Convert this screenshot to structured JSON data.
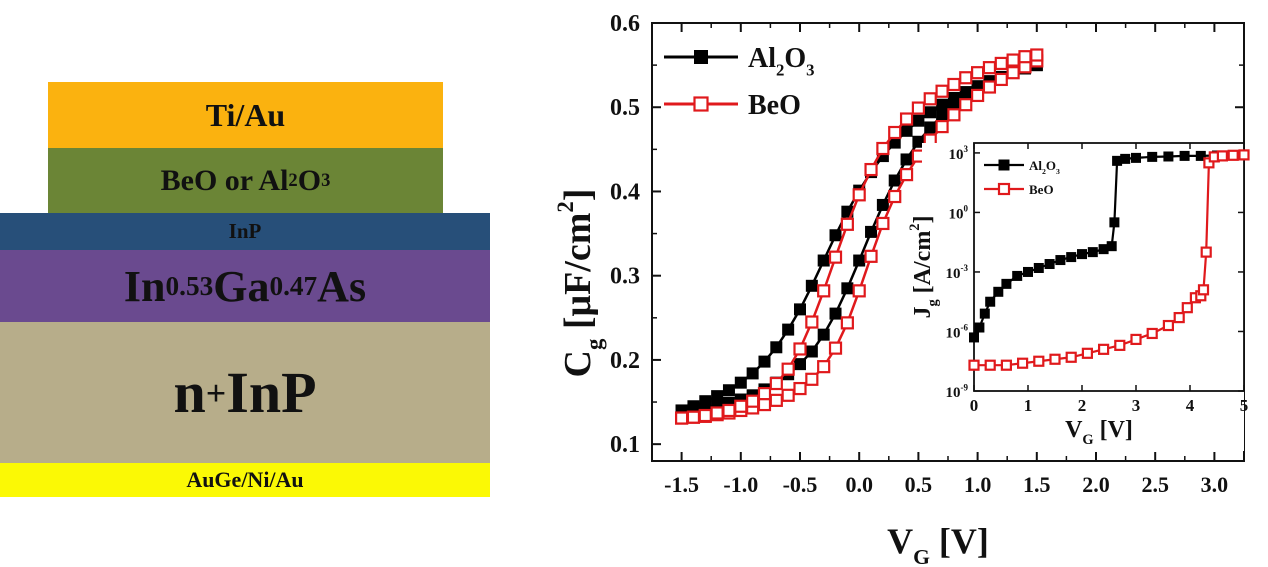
{
  "stack": {
    "layers": [
      {
        "label": "Ti/Au",
        "color": "#fbb20f"
      },
      {
        "label": "BeO or Al",
        "sub": "2",
        "label2": "O",
        "sub2": "3",
        "color": "#6b8536"
      },
      {
        "label": "InP",
        "color": "#274f79"
      },
      {
        "label": "In",
        "sub": "0.53",
        "label2": "Ga",
        "sub2": "0.47",
        "label3": "As",
        "color": "#6a4a8f"
      },
      {
        "label": "n",
        "sup": "+",
        "label2": " InP",
        "color": "#b7ad8a"
      },
      {
        "label": "AuGe/Ni/Au",
        "color": "#fbf905"
      }
    ]
  },
  "chart_data": [
    {
      "type": "line",
      "xlabel": "V",
      "xlabel_sub": "G",
      "xlabel_unit": "[V]",
      "ylabel": "C",
      "ylabel_sub": "g",
      "ylabel_unit_open": "[μF/cm",
      "ylabel_unit_sup": "2",
      "ylabel_unit_close": "]",
      "xlim": [
        -1.75,
        3.25
      ],
      "ylim": [
        0.08,
        0.6
      ],
      "xticks": [
        "-1.5",
        "-1.0",
        "-0.5",
        "0.0",
        "0.5",
        "1.0",
        "1.5",
        "2.0",
        "2.5",
        "3.0"
      ],
      "xtick_values": [
        -1.5,
        -1.0,
        -0.5,
        0.0,
        0.5,
        1.0,
        1.5,
        2.0,
        2.5,
        3.0
      ],
      "yticks": [
        "0.1",
        "0.2",
        "0.3",
        "0.4",
        "0.5",
        "0.6"
      ],
      "ytick_values": [
        0.1,
        0.2,
        0.3,
        0.4,
        0.5,
        0.6
      ],
      "legend_position": "top-left",
      "series": [
        {
          "name": "Al",
          "name_sub": "2",
          "name2": "O",
          "name_sub2": "3",
          "color": "#000000",
          "marker": "filled-square",
          "forward": {
            "x": [
              -1.5,
              -1.4,
              -1.3,
              -1.2,
              -1.1,
              -1.0,
              -0.9,
              -0.8,
              -0.7,
              -0.6,
              -0.5,
              -0.4,
              -0.3,
              -0.2,
              -0.1,
              0.0,
              0.1,
              0.2,
              0.3,
              0.4,
              0.5,
              0.6,
              0.7,
              0.8,
              0.9,
              1.0,
              1.1,
              1.2,
              1.3,
              1.4,
              1.5
            ],
            "y": [
              0.14,
              0.145,
              0.151,
              0.157,
              0.164,
              0.173,
              0.184,
              0.198,
              0.215,
              0.236,
              0.26,
              0.288,
              0.318,
              0.348,
              0.376,
              0.401,
              0.423,
              0.442,
              0.458,
              0.472,
              0.484,
              0.494,
              0.503,
              0.511,
              0.518,
              0.525,
              0.531,
              0.536,
              0.541,
              0.546,
              0.55
            ]
          },
          "reverse": {
            "x": [
              1.5,
              1.4,
              1.3,
              1.2,
              1.1,
              1.0,
              0.9,
              0.8,
              0.7,
              0.6,
              0.5,
              0.4,
              0.3,
              0.2,
              0.1,
              0.0,
              -0.1,
              -0.2,
              -0.3,
              -0.4,
              -0.5,
              -0.6,
              -0.7,
              -0.8,
              -0.9,
              -1.0,
              -1.1,
              -1.2,
              -1.3,
              -1.4,
              -1.5
            ],
            "y": [
              0.55,
              0.546,
              0.541,
              0.535,
              0.529,
              0.521,
              0.512,
              0.502,
              0.49,
              0.476,
              0.459,
              0.438,
              0.413,
              0.384,
              0.352,
              0.318,
              0.285,
              0.255,
              0.23,
              0.21,
              0.195,
              0.183,
              0.173,
              0.165,
              0.158,
              0.153,
              0.149,
              0.146,
              0.143,
              0.141,
              0.14
            ]
          }
        },
        {
          "name": "BeO",
          "color": "#e0191c",
          "marker": "open-square",
          "forward": {
            "x": [
              -1.5,
              -1.4,
              -1.3,
              -1.2,
              -1.1,
              -1.0,
              -0.9,
              -0.8,
              -0.7,
              -0.6,
              -0.5,
              -0.4,
              -0.3,
              -0.2,
              -0.1,
              0.0,
              0.1,
              0.2,
              0.3,
              0.4,
              0.5,
              0.6,
              0.7,
              0.8,
              0.9,
              1.0,
              1.1,
              1.2,
              1.3,
              1.4,
              1.5
            ],
            "y": [
              0.131,
              0.132,
              0.133,
              0.135,
              0.137,
              0.14,
              0.143,
              0.147,
              0.152,
              0.158,
              0.166,
              0.177,
              0.192,
              0.214,
              0.244,
              0.282,
              0.323,
              0.362,
              0.394,
              0.42,
              0.442,
              0.461,
              0.477,
              0.491,
              0.503,
              0.514,
              0.524,
              0.533,
              0.541,
              0.548,
              0.555
            ]
          },
          "reverse": {
            "x": [
              1.5,
              1.4,
              1.3,
              1.2,
              1.1,
              1.0,
              0.9,
              0.8,
              0.7,
              0.6,
              0.5,
              0.4,
              0.3,
              0.2,
              0.1,
              0.0,
              -0.1,
              -0.2,
              -0.3,
              -0.4,
              -0.5,
              -0.6,
              -0.7,
              -0.8,
              -0.9,
              -1.0,
              -1.1,
              -1.2,
              -1.3,
              -1.4,
              -1.5
            ],
            "y": [
              0.562,
              0.56,
              0.556,
              0.552,
              0.547,
              0.541,
              0.535,
              0.527,
              0.519,
              0.51,
              0.499,
              0.486,
              0.47,
              0.451,
              0.426,
              0.396,
              0.361,
              0.322,
              0.282,
              0.245,
              0.213,
              0.189,
              0.172,
              0.16,
              0.151,
              0.145,
              0.14,
              0.137,
              0.134,
              0.132,
              0.131
            ]
          }
        }
      ]
    },
    {
      "type": "line",
      "xlabel": "V",
      "xlabel_sub": "G",
      "xlabel_unit": "[V]",
      "ylabel": "J",
      "ylabel_sub": "g",
      "ylabel_unit_open": "[A/cm",
      "ylabel_unit_sup": "2",
      "ylabel_unit_close": "]",
      "y_scale": "log",
      "xlim": [
        0,
        5
      ],
      "ylim_exp": [
        -9,
        3.5
      ],
      "xticks": [
        "0",
        "1",
        "2",
        "3",
        "4",
        "5"
      ],
      "xtick_values": [
        0,
        1,
        2,
        3,
        4,
        5
      ],
      "yticks_base": "10",
      "yticks_exp": [
        "-9",
        "-6",
        "-3",
        "0",
        "3"
      ],
      "ytick_exp_values": [
        -9,
        -6,
        -3,
        0,
        3
      ],
      "legend_position": "top-left",
      "series": [
        {
          "name": "Al",
          "name_sub": "2",
          "name2": "O",
          "name_sub2": "3",
          "color": "#000000",
          "marker": "filled-square",
          "x": [
            0.0,
            0.1,
            0.2,
            0.3,
            0.45,
            0.6,
            0.8,
            1.0,
            1.2,
            1.4,
            1.6,
            1.8,
            2.0,
            2.2,
            2.4,
            2.55,
            2.6,
            2.65,
            2.8,
            3.0,
            3.3,
            3.6,
            3.9,
            4.2,
            4.5,
            4.8
          ],
          "log_y": [
            -6.3,
            -5.8,
            -5.1,
            -4.5,
            -4.0,
            -3.6,
            -3.2,
            -3.0,
            -2.8,
            -2.6,
            -2.4,
            -2.25,
            -2.1,
            -2.0,
            -1.85,
            -1.7,
            -0.5,
            2.6,
            2.7,
            2.75,
            2.8,
            2.82,
            2.85,
            2.85,
            2.87,
            2.88
          ]
        },
        {
          "name": "BeO",
          "color": "#e0191c",
          "marker": "open-square",
          "x": [
            0.0,
            0.3,
            0.6,
            0.9,
            1.2,
            1.5,
            1.8,
            2.1,
            2.4,
            2.7,
            3.0,
            3.3,
            3.6,
            3.8,
            3.95,
            4.1,
            4.2,
            4.25,
            4.3,
            4.35,
            4.45,
            4.6,
            4.8,
            5.0
          ],
          "log_y": [
            -7.7,
            -7.7,
            -7.7,
            -7.6,
            -7.5,
            -7.4,
            -7.3,
            -7.1,
            -6.9,
            -6.7,
            -6.4,
            -6.1,
            -5.7,
            -5.3,
            -4.8,
            -4.3,
            -4.2,
            -3.9,
            -2.0,
            2.5,
            2.8,
            2.85,
            2.88,
            2.9
          ]
        }
      ]
    }
  ]
}
